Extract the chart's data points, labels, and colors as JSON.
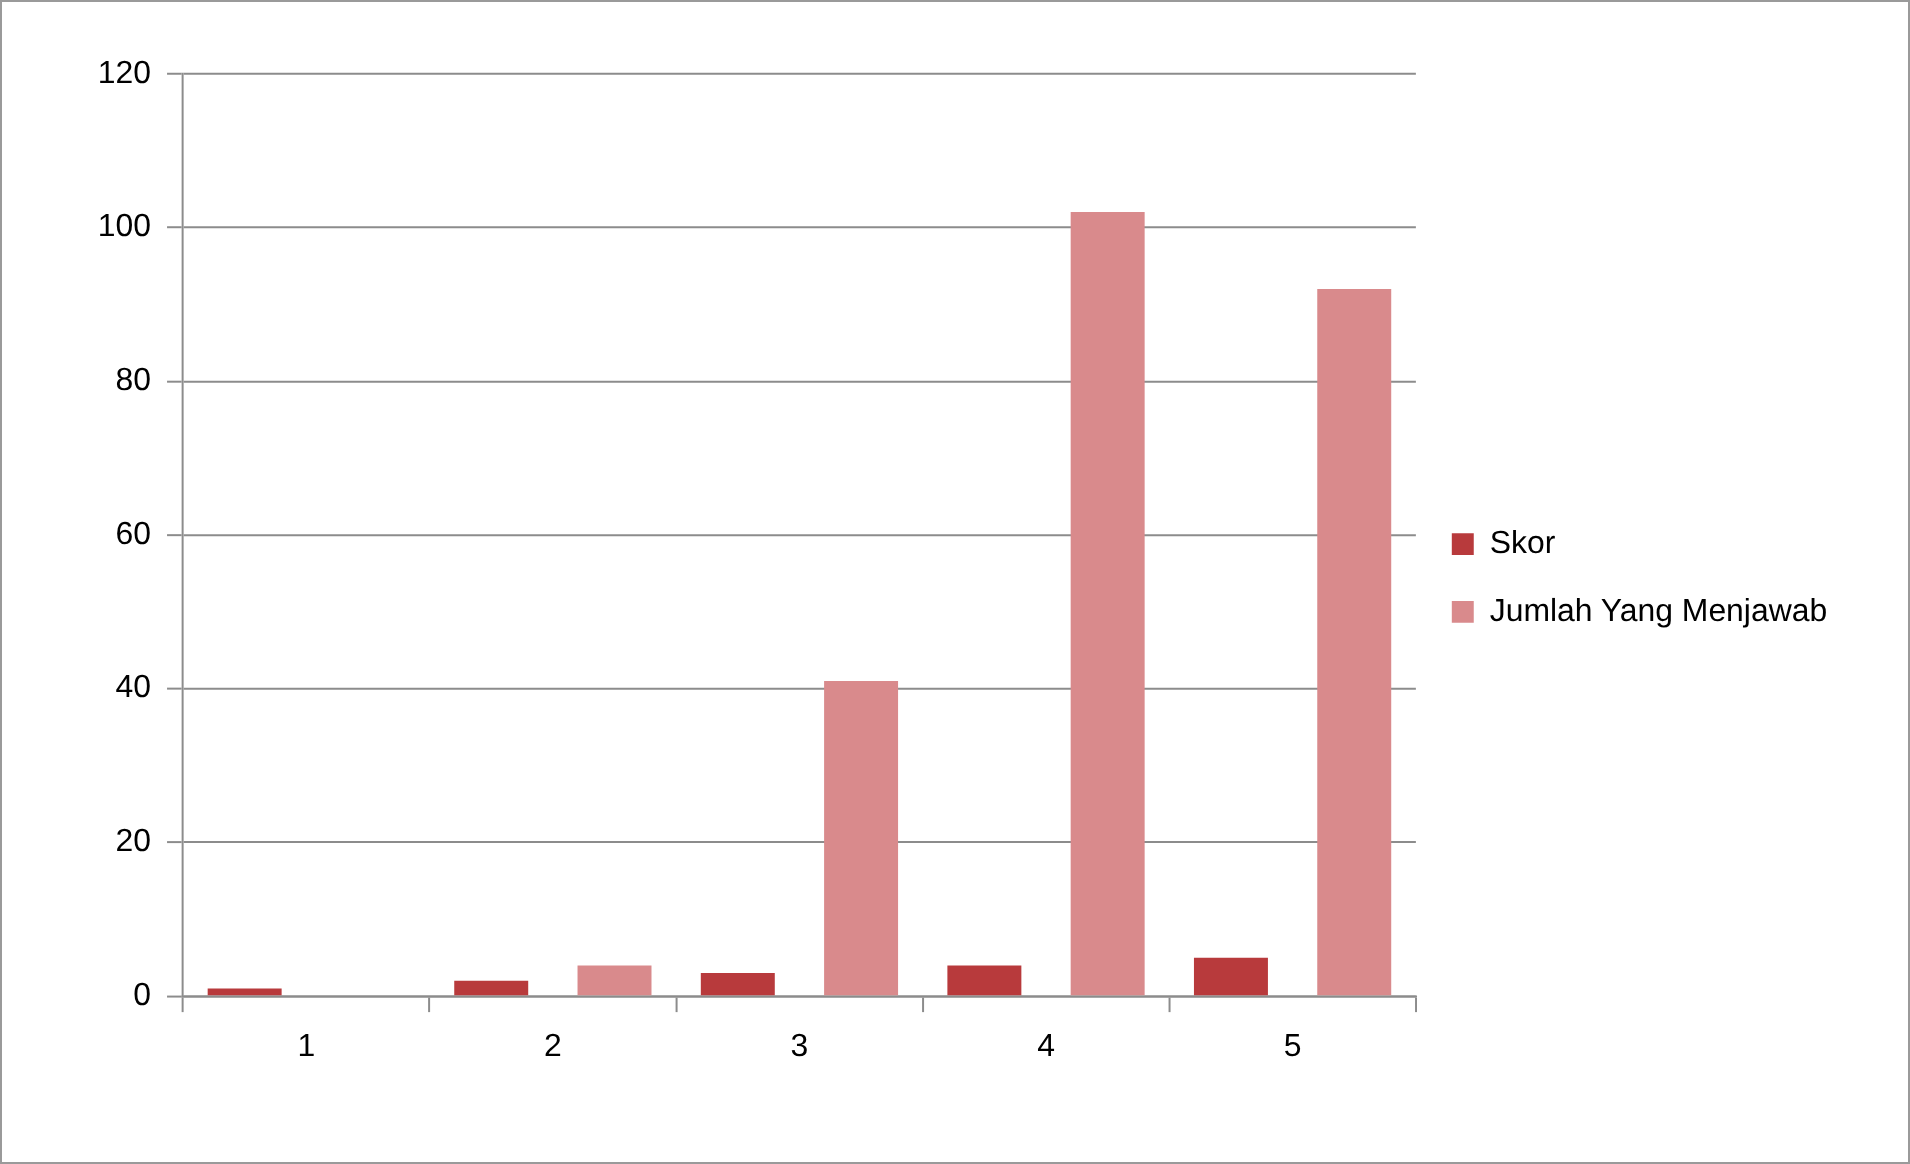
{
  "chart_data": {
    "type": "bar",
    "categories": [
      "1",
      "2",
      "3",
      "4",
      "5"
    ],
    "series": [
      {
        "name": "Skor",
        "color": "#b83a3c",
        "values": [
          1,
          2,
          3,
          4,
          5
        ]
      },
      {
        "name": "Jumlah Yang Menjawab",
        "color": "#d98a8c",
        "values": [
          0,
          4,
          41,
          102,
          92
        ]
      }
    ],
    "ylim": [
      0,
      120
    ],
    "yticks": [
      0,
      20,
      40,
      60,
      80,
      100,
      120
    ],
    "grid": "y",
    "legend": "right"
  }
}
